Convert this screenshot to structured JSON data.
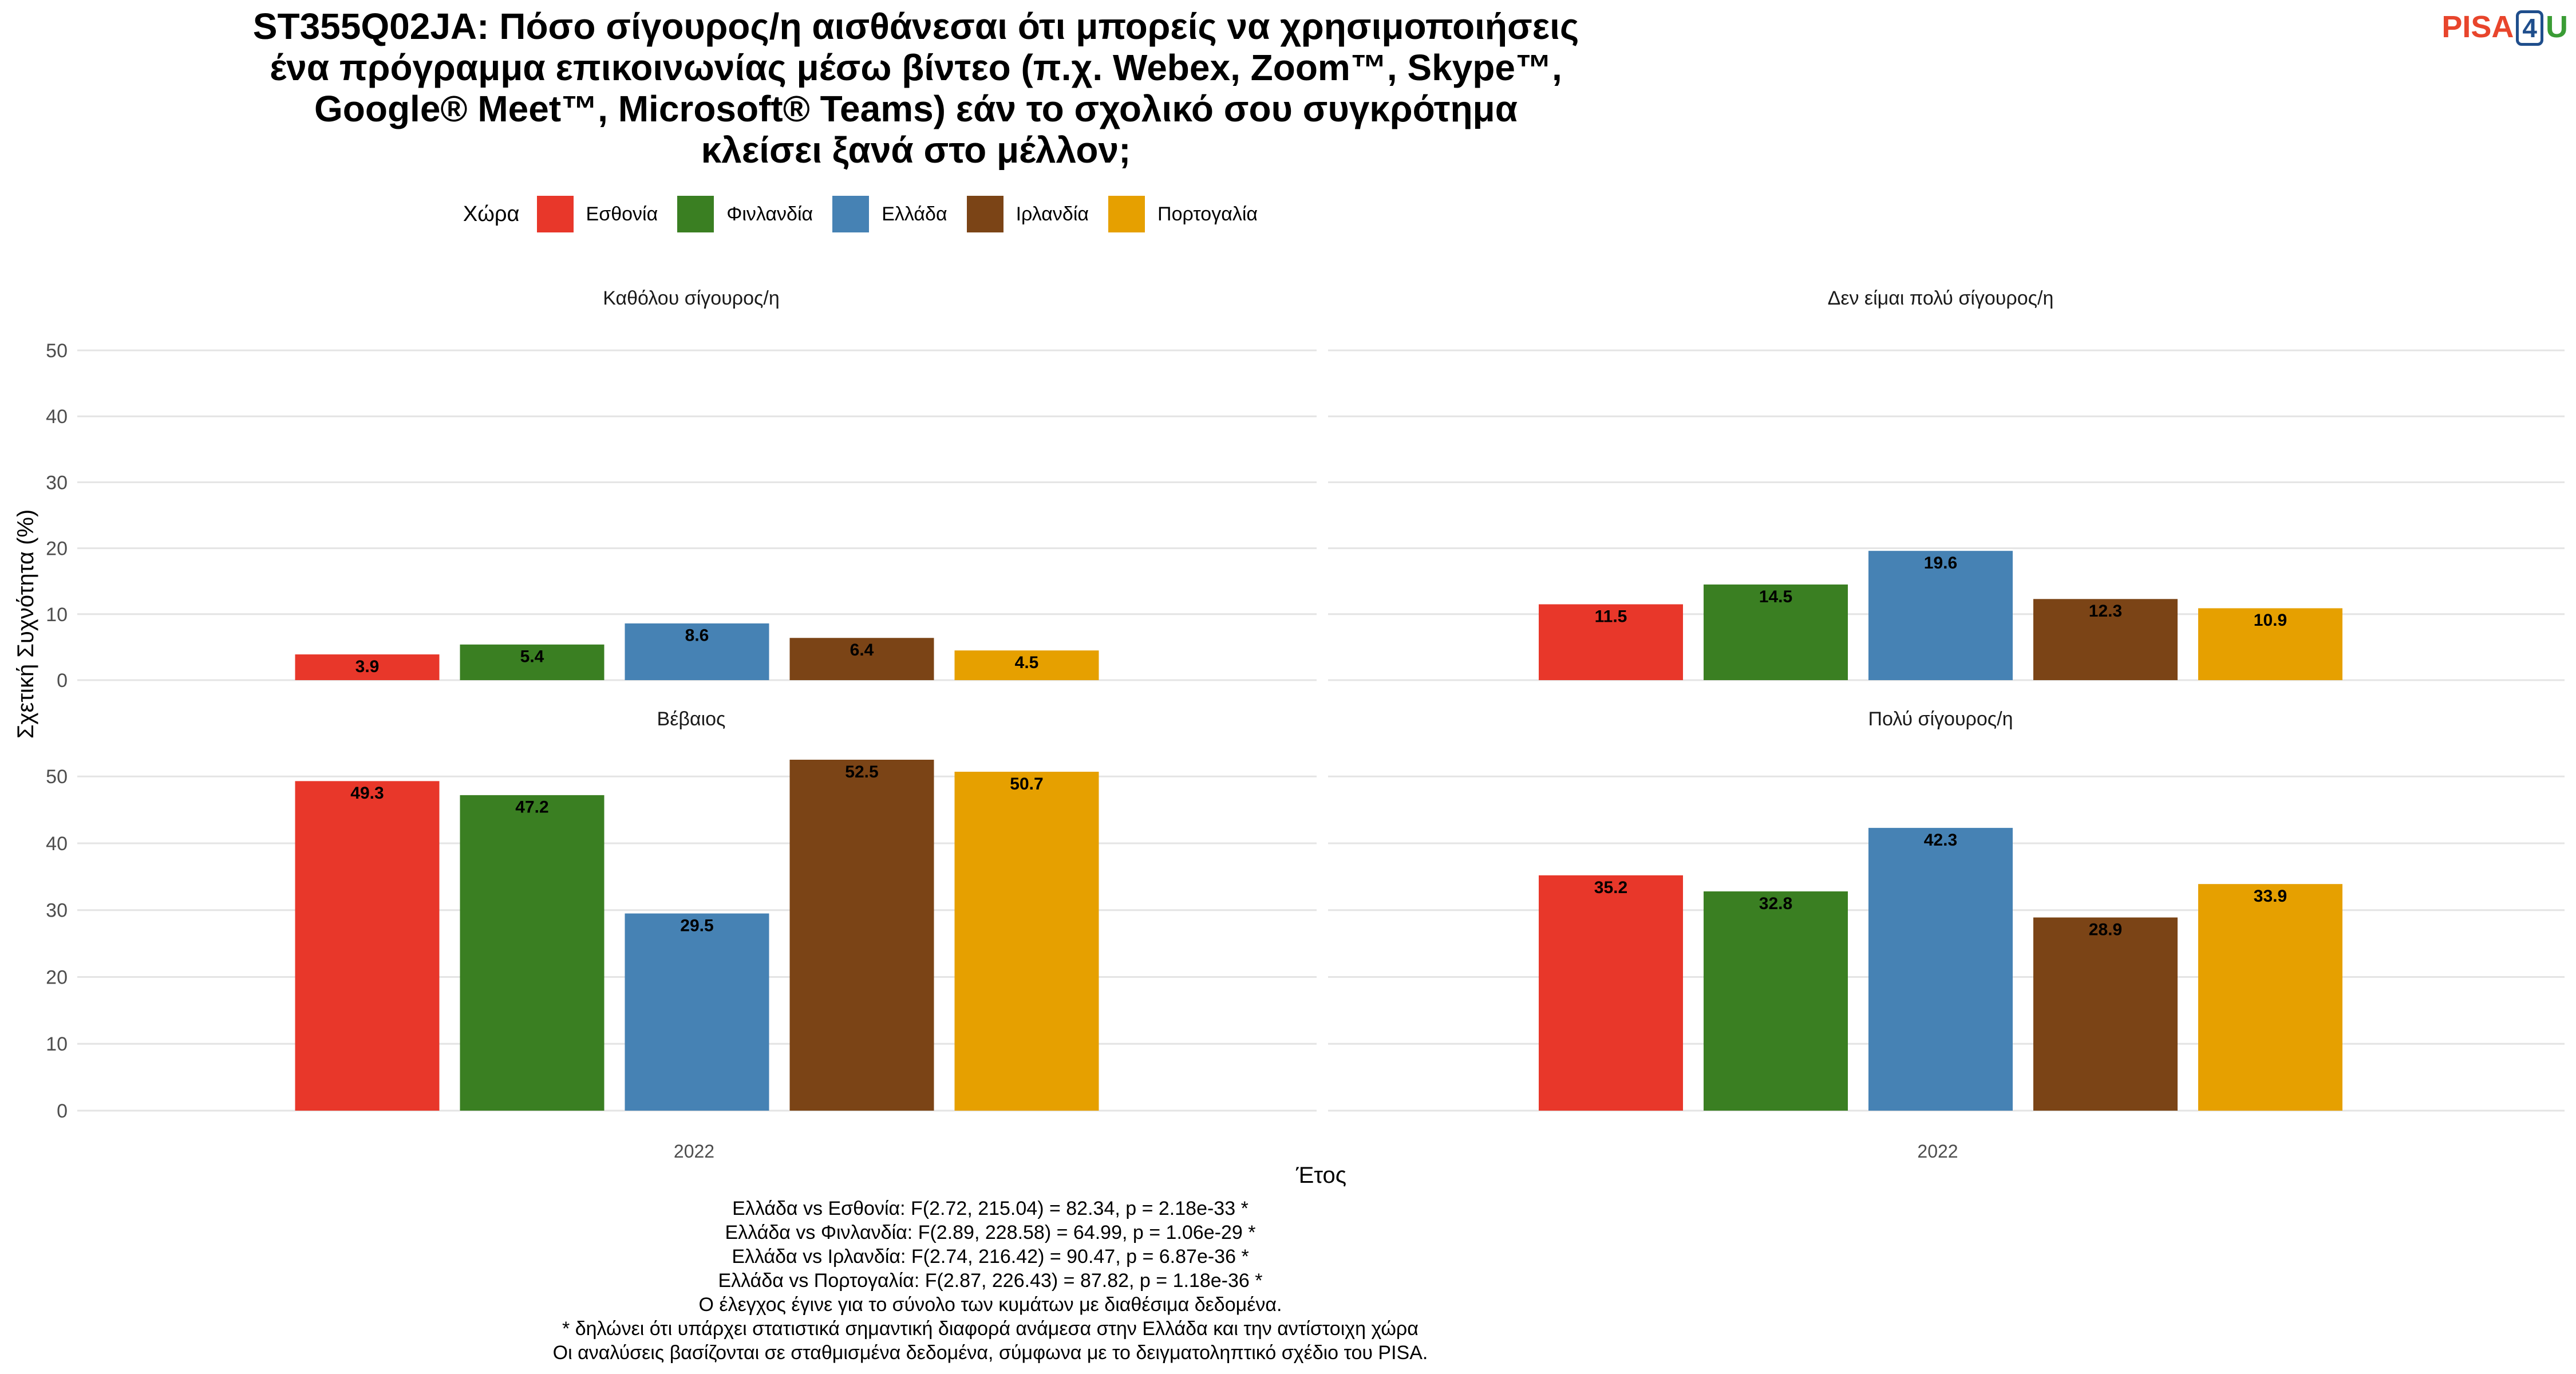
{
  "title_lines": [
    "ST355Q02JA: Πόσο σίγουρος/η αισθάνεσαι ότι μπορείς να χρησιμοποιήσεις",
    "ένα πρόγραμμα επικοινωνίας μέσω βίντεο (π.χ. Webex, Zoom™, Skype™,",
    "Google® Meet™, Microsoft® Teams) εάν το σχολικό σου συγκρότημα",
    "κλείσει ξανά στο μέλλον;"
  ],
  "logo": {
    "pisa": "PISA",
    "four": "4",
    "u": "U"
  },
  "legend": {
    "title": "Χώρα",
    "items": [
      {
        "label": "Εσθονία",
        "color": "#e8372a"
      },
      {
        "label": "Φινλανδία",
        "color": "#3a7f22"
      },
      {
        "label": "Ελλάδα",
        "color": "#4682b4"
      },
      {
        "label": "Ιρλανδία",
        "color": "#7b4416"
      },
      {
        "label": "Πορτογαλία",
        "color": "#e6a000"
      }
    ]
  },
  "chart_data": {
    "type": "bar",
    "xlabel": "Έτος",
    "ylabel": "Σχετική Συχνότητα (%)",
    "ylim": [
      0,
      50
    ],
    "yticks": [
      0,
      10,
      20,
      30,
      40,
      50
    ],
    "grid": true,
    "legend_position": "top",
    "categories": [
      "2022"
    ],
    "series_names": [
      "Εσθονία",
      "Φινλανδία",
      "Ελλάδα",
      "Ιρλανδία",
      "Πορτογαλία"
    ],
    "facets": [
      {
        "title": "Καθόλου σίγουρος/η",
        "values": [
          3.9,
          5.4,
          8.6,
          6.4,
          4.5
        ]
      },
      {
        "title": "Δεν είμαι πολύ σίγουρος/η",
        "values": [
          11.5,
          14.5,
          19.6,
          12.3,
          10.9
        ]
      },
      {
        "title": "Βέβαιος",
        "values": [
          49.3,
          47.2,
          29.5,
          52.5,
          50.7
        ]
      },
      {
        "title": "Πολύ σίγουρος/η",
        "values": [
          35.2,
          32.8,
          42.3,
          28.9,
          33.9
        ]
      }
    ]
  },
  "notes": [
    "Ελλάδα vs Εσθονία: F(2.72, 215.04) = 82.34, p = 2.18e-33 *",
    "Ελλάδα vs Φινλανδία: F(2.89, 228.58) = 64.99, p = 1.06e-29 *",
    "Ελλάδα vs Ιρλανδία: F(2.74, 216.42) = 90.47, p = 6.87e-36 *",
    "Ελλάδα vs Πορτογαλία: F(2.87, 226.43) = 87.82, p = 1.18e-36 *",
    "Ο έλεγχος έγινε για το σύνολο των κυμάτων με διαθέσιμα δεδομένα.",
    "* δηλώνει ότι υπάρχει στατιστικά σημαντική διαφορά ανάμεσα στην Ελλάδα και την αντίστοιχη χώρα",
    "Οι αναλύσεις βασίζονται σε σταθμισμένα δεδομένα, σύμφωνα με το δειγματοληπτικό σχέδιο του PISA."
  ]
}
